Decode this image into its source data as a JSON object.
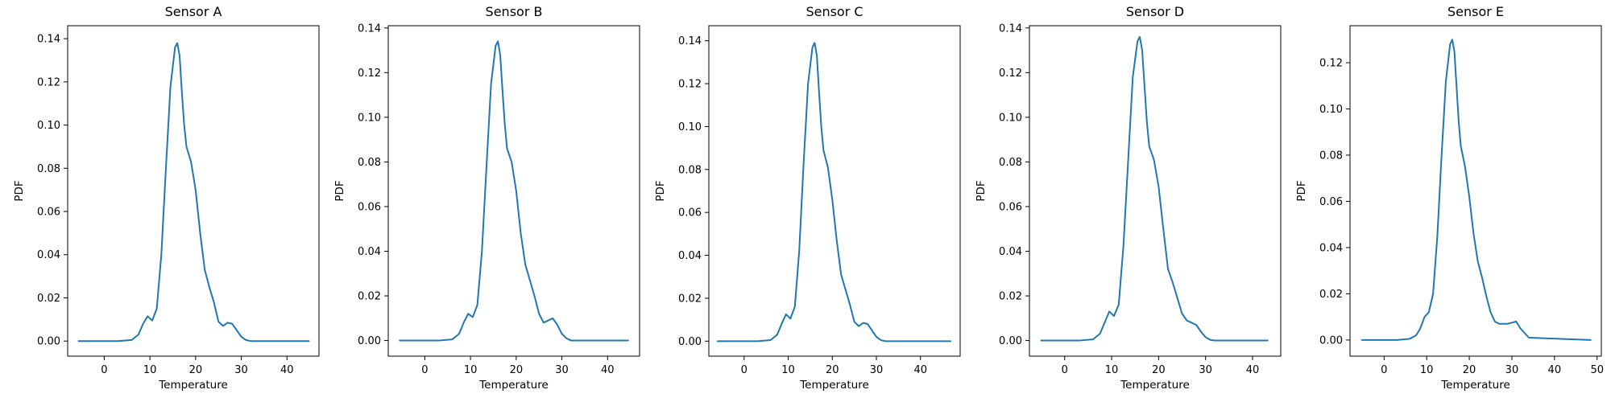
{
  "figure": {
    "line_color": "#1f77b4"
  },
  "chart_data": [
    {
      "type": "line",
      "title": "Sensor A",
      "xlabel": "Temperature",
      "ylabel": "PDF",
      "xlim": [
        -8,
        47
      ],
      "ylim": [
        -0.007,
        0.146
      ],
      "xticks": [
        0,
        10,
        20,
        30,
        40
      ],
      "yticks": [
        0.0,
        0.02,
        0.04,
        0.06,
        0.08,
        0.1,
        0.12,
        0.14
      ],
      "ytick_labels": [
        "0.00",
        "0.02",
        "0.04",
        "0.06",
        "0.08",
        "0.10",
        "0.12",
        "0.14"
      ],
      "grid": false,
      "x": [
        -5.6,
        3,
        6,
        7.5,
        8.5,
        9.5,
        10.5,
        11.5,
        12.5,
        13.5,
        14.5,
        15.5,
        16,
        16.5,
        17,
        17.5,
        18,
        19,
        20,
        21,
        22,
        23,
        24,
        25,
        26,
        27,
        28,
        29,
        30,
        31,
        32,
        34,
        44.8
      ],
      "y": [
        0,
        0,
        0.0005,
        0.003,
        0.008,
        0.0115,
        0.0095,
        0.015,
        0.04,
        0.08,
        0.118,
        0.136,
        0.138,
        0.132,
        0.115,
        0.1,
        0.09,
        0.083,
        0.07,
        0.05,
        0.033,
        0.025,
        0.018,
        0.009,
        0.007,
        0.0085,
        0.008,
        0.005,
        0.002,
        0.0005,
        0,
        0,
        0
      ]
    },
    {
      "type": "line",
      "title": "Sensor B",
      "xlabel": "Temperature",
      "ylabel": "PDF",
      "xlim": [
        -8,
        47
      ],
      "ylim": [
        -0.007,
        0.141
      ],
      "xticks": [
        0,
        10,
        20,
        30,
        40
      ],
      "yticks": [
        0.0,
        0.02,
        0.04,
        0.06,
        0.08,
        0.1,
        0.12,
        0.14
      ],
      "ytick_labels": [
        "0.00",
        "0.02",
        "0.04",
        "0.06",
        "0.08",
        "0.10",
        "0.12",
        "0.14"
      ],
      "grid": false,
      "x": [
        -5.5,
        3,
        6,
        7.5,
        8.5,
        9.5,
        10.5,
        11.5,
        12.5,
        13.5,
        14.5,
        15.5,
        16,
        16.5,
        17,
        17.5,
        18,
        19,
        20,
        21,
        22,
        23,
        24,
        25,
        26,
        27,
        28,
        29,
        30,
        31,
        32,
        34,
        44.5
      ],
      "y": [
        0,
        0,
        0.0005,
        0.003,
        0.008,
        0.012,
        0.0105,
        0.016,
        0.04,
        0.078,
        0.115,
        0.132,
        0.134,
        0.128,
        0.112,
        0.097,
        0.086,
        0.08,
        0.067,
        0.048,
        0.034,
        0.027,
        0.02,
        0.012,
        0.008,
        0.009,
        0.01,
        0.007,
        0.003,
        0.001,
        0,
        0,
        0
      ]
    },
    {
      "type": "line",
      "title": "Sensor C",
      "xlabel": "Temperature",
      "ylabel": "PDF",
      "xlim": [
        -8,
        49
      ],
      "ylim": [
        -0.007,
        0.147
      ],
      "xticks": [
        0,
        10,
        20,
        30,
        40
      ],
      "yticks": [
        0.0,
        0.02,
        0.04,
        0.06,
        0.08,
        0.1,
        0.12,
        0.14
      ],
      "ytick_labels": [
        "0.00",
        "0.02",
        "0.04",
        "0.06",
        "0.08",
        "0.10",
        "0.12",
        "0.14"
      ],
      "grid": false,
      "x": [
        -6,
        3,
        6,
        7.5,
        8.5,
        9.5,
        10.5,
        11.5,
        12.5,
        13.5,
        14.5,
        15.5,
        16,
        16.5,
        17,
        17.5,
        18,
        19,
        20,
        21,
        22,
        23,
        24,
        25,
        26,
        27,
        28,
        29,
        30,
        31,
        32,
        34,
        46.8
      ],
      "y": [
        0,
        0,
        0.0005,
        0.003,
        0.008,
        0.0125,
        0.0105,
        0.016,
        0.042,
        0.083,
        0.12,
        0.137,
        0.139,
        0.133,
        0.116,
        0.1,
        0.089,
        0.081,
        0.066,
        0.047,
        0.031,
        0.024,
        0.017,
        0.009,
        0.007,
        0.0085,
        0.008,
        0.005,
        0.002,
        0.0005,
        0,
        0,
        0
      ]
    },
    {
      "type": "line",
      "title": "Sensor D",
      "xlabel": "Temperature",
      "ylabel": "PDF",
      "xlim": [
        -7.5,
        46
      ],
      "ylim": [
        -0.007,
        0.141
      ],
      "xticks": [
        0,
        10,
        20,
        30,
        40
      ],
      "yticks": [
        0.0,
        0.02,
        0.04,
        0.06,
        0.08,
        0.1,
        0.12,
        0.14
      ],
      "ytick_labels": [
        "0.00",
        "0.02",
        "0.04",
        "0.06",
        "0.08",
        "0.10",
        "0.12",
        "0.14"
      ],
      "grid": false,
      "x": [
        -5,
        3,
        6,
        7.5,
        8.5,
        9.5,
        10.5,
        11.5,
        12.5,
        13.5,
        14.5,
        15.5,
        16,
        16.5,
        17,
        17.5,
        18,
        19,
        20,
        21,
        22,
        23,
        24,
        25,
        26,
        27,
        28,
        29,
        30,
        31,
        32,
        34,
        43.2
      ],
      "y": [
        0,
        0,
        0.0005,
        0.003,
        0.008,
        0.013,
        0.011,
        0.016,
        0.042,
        0.08,
        0.118,
        0.134,
        0.136,
        0.13,
        0.114,
        0.098,
        0.087,
        0.081,
        0.069,
        0.05,
        0.032,
        0.026,
        0.019,
        0.012,
        0.009,
        0.008,
        0.007,
        0.004,
        0.0015,
        0.0003,
        0,
        0,
        0
      ]
    },
    {
      "type": "line",
      "title": "Sensor E",
      "xlabel": "Temperature",
      "ylabel": "PDF",
      "xlim": [
        -8,
        51
      ],
      "ylim": [
        -0.007,
        0.136
      ],
      "xticks": [
        0,
        10,
        20,
        30,
        40,
        50
      ],
      "yticks": [
        0.0,
        0.02,
        0.04,
        0.06,
        0.08,
        0.1,
        0.12
      ],
      "ytick_labels": [
        "0.00",
        "0.02",
        "0.04",
        "0.06",
        "0.08",
        "0.10",
        "0.12"
      ],
      "grid": false,
      "x": [
        -5.2,
        3,
        6,
        7.5,
        8.5,
        9.5,
        10.5,
        11.5,
        12.5,
        13.5,
        14.5,
        15.5,
        16,
        16.5,
        17,
        17.5,
        18,
        19,
        20,
        21,
        22,
        23,
        24,
        25,
        26,
        27,
        28,
        29,
        30,
        31,
        32,
        34,
        48.5
      ],
      "y": [
        0,
        0,
        0.0005,
        0.002,
        0.005,
        0.01,
        0.012,
        0.02,
        0.045,
        0.08,
        0.112,
        0.128,
        0.13,
        0.125,
        0.11,
        0.095,
        0.084,
        0.075,
        0.062,
        0.046,
        0.034,
        0.027,
        0.019,
        0.012,
        0.008,
        0.007,
        0.007,
        0.007,
        0.0075,
        0.008,
        0.005,
        0.001,
        0
      ]
    }
  ]
}
